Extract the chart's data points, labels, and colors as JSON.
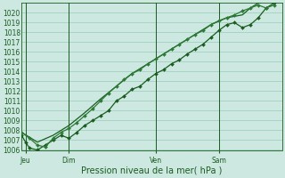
{
  "bg_color": "#cce8e0",
  "grid_color": "#99ccbb",
  "line_color_dark": "#1a5c20",
  "line_color_mid": "#2d7a35",
  "xlabel": "Pression niveau de la mer( hPa )",
  "ylim": [
    1006,
    1021
  ],
  "yticks": [
    1006,
    1007,
    1008,
    1009,
    1010,
    1011,
    1012,
    1013,
    1014,
    1015,
    1016,
    1017,
    1018,
    1019,
    1020
  ],
  "xtick_labels": [
    "Jeu",
    "Dim",
    "Ven",
    "Sam"
  ],
  "xtick_positions": [
    0.5,
    6,
    17,
    25
  ],
  "xlim": [
    0,
    33
  ],
  "vline_positions": [
    0.5,
    6,
    17,
    25
  ],
  "line1_x": [
    0,
    0.5,
    1,
    2,
    3,
    4,
    5,
    6,
    7,
    8,
    9,
    10,
    11,
    12,
    13,
    14,
    15,
    16,
    17,
    18,
    19,
    20,
    21,
    22,
    23,
    24,
    25,
    26,
    27,
    28,
    29,
    30,
    31,
    32
  ],
  "line1_y": [
    1007.5,
    1006.8,
    1006.2,
    1006.0,
    1006.5,
    1007.0,
    1007.5,
    1007.2,
    1007.8,
    1008.5,
    1009.0,
    1009.5,
    1010.0,
    1011.0,
    1011.5,
    1012.2,
    1012.5,
    1013.2,
    1013.8,
    1014.2,
    1014.8,
    1015.2,
    1015.8,
    1016.3,
    1016.8,
    1017.5,
    1018.2,
    1018.8,
    1019.0,
    1018.5,
    1018.8,
    1019.5,
    1020.5,
    1021.0
  ],
  "line2_x": [
    0,
    1,
    2,
    3,
    4,
    5,
    6,
    7,
    8,
    9,
    10,
    11,
    12,
    13,
    14,
    15,
    16,
    17,
    18,
    19,
    20,
    21,
    22,
    23,
    24,
    25,
    26,
    27,
    28,
    29,
    30,
    31,
    32
  ],
  "line2_y": [
    1007.8,
    1007.2,
    1006.5,
    1006.3,
    1007.2,
    1007.8,
    1008.2,
    1008.8,
    1009.5,
    1010.2,
    1011.0,
    1011.8,
    1012.5,
    1013.2,
    1013.8,
    1014.2,
    1014.8,
    1015.3,
    1015.8,
    1016.3,
    1016.8,
    1017.3,
    1017.8,
    1018.2,
    1018.8,
    1019.2,
    1019.5,
    1019.8,
    1020.2,
    1020.5,
    1020.8,
    1020.5,
    1020.8
  ],
  "line3_x": [
    0,
    2,
    4,
    6,
    8,
    10,
    12,
    14,
    16,
    18,
    20,
    22,
    24,
    26,
    28,
    29,
    30,
    31,
    32
  ],
  "line3_y": [
    1007.8,
    1006.8,
    1007.5,
    1008.5,
    1009.8,
    1011.2,
    1012.5,
    1013.8,
    1014.8,
    1015.8,
    1016.8,
    1017.8,
    1018.8,
    1019.5,
    1019.8,
    1020.5,
    1021.0,
    1021.2,
    1021.0
  ],
  "ylabel_fontsize": 5.5,
  "xlabel_fontsize": 7,
  "tick_fontsize": 5.5
}
